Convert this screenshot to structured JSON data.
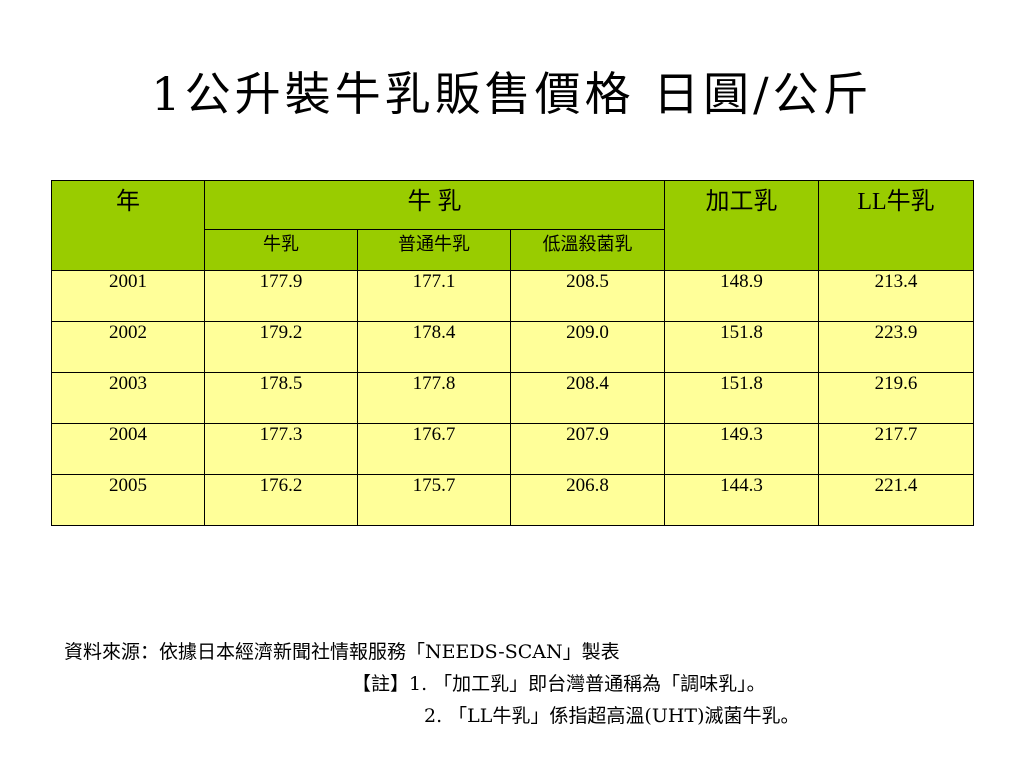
{
  "title": "1公升裝牛乳販售價格 日圓/公斤",
  "table": {
    "header": {
      "year": "年",
      "milk_group": "牛 乳",
      "processed": "加工乳",
      "ll_milk": "LL牛乳",
      "sub": [
        "牛乳",
        "普通牛乳",
        "低溫殺菌乳"
      ]
    },
    "rows": [
      [
        "2001",
        "177.9",
        "177.1",
        "208.5",
        "148.9",
        "213.4"
      ],
      [
        "2002",
        "179.2",
        "178.4",
        "209.0",
        "151.8",
        "223.9"
      ],
      [
        "2003",
        "178.5",
        "177.8",
        "208.4",
        "151.8",
        "219.6"
      ],
      [
        "2004",
        "177.3",
        "176.7",
        "207.9",
        "149.3",
        "217.7"
      ],
      [
        "2005",
        "176.2",
        "175.7",
        "206.8",
        "144.3",
        "221.4"
      ]
    ]
  },
  "notes": {
    "source": "資料來源：依據日本經濟新聞社情報服務「NEEDS-SCAN」製表",
    "note1": "【註】1. 「加工乳」即台灣普通稱為「調味乳」。",
    "note2": "2. 「LL牛乳」係指超高溫(UHT)滅菌牛乳。"
  },
  "colors": {
    "header_bg": "#99cc00",
    "cell_bg": "#ffff99"
  }
}
